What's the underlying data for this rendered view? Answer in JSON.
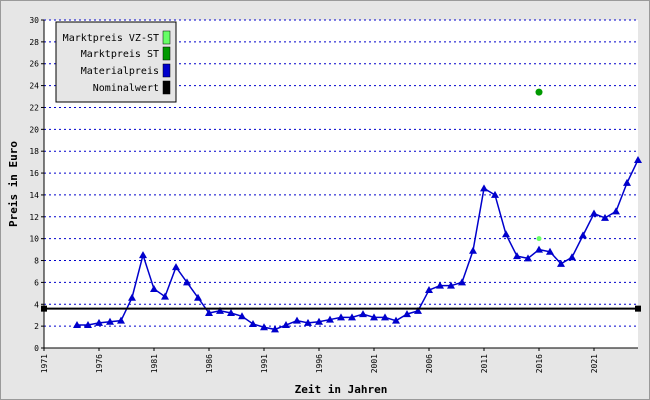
{
  "chart_data": {
    "type": "line",
    "title": "",
    "xlabel": "Zeit in Jahren",
    "ylabel": "Preis in Euro",
    "xlim": [
      1971,
      2025
    ],
    "ylim": [
      0,
      30
    ],
    "x_ticks": [
      "1971",
      "1976",
      "1981",
      "1986",
      "1991",
      "1996",
      "2001",
      "2006",
      "2011",
      "2016",
      "2021"
    ],
    "y_ticks": [
      0,
      2,
      4,
      6,
      8,
      10,
      12,
      14,
      16,
      18,
      20,
      22,
      24,
      26,
      28,
      30
    ],
    "grid": "horizontal dotted",
    "legend_position": "top-left",
    "series": [
      {
        "name": "Marktpreis VZ-ST",
        "color": "#66ff66",
        "kind": "point",
        "points": [
          [
            2016,
            10.0
          ]
        ]
      },
      {
        "name": "Marktpreis ST",
        "color": "#009900",
        "kind": "point",
        "points": [
          [
            2016,
            23.4
          ]
        ]
      },
      {
        "name": "Materialpreis",
        "color": "#0000cc",
        "kind": "line",
        "points": [
          [
            1974,
            2.1
          ],
          [
            1975,
            2.1
          ],
          [
            1976,
            2.3
          ],
          [
            1977,
            2.4
          ],
          [
            1978,
            2.5
          ],
          [
            1979,
            4.6
          ],
          [
            1980,
            8.5
          ],
          [
            1981,
            5.4
          ],
          [
            1982,
            4.7
          ],
          [
            1983,
            7.4
          ],
          [
            1984,
            6.0
          ],
          [
            1985,
            4.6
          ],
          [
            1986,
            3.2
          ],
          [
            1987,
            3.4
          ],
          [
            1988,
            3.2
          ],
          [
            1989,
            2.9
          ],
          [
            1990,
            2.2
          ],
          [
            1991,
            1.9
          ],
          [
            1992,
            1.7
          ],
          [
            1993,
            2.1
          ],
          [
            1994,
            2.5
          ],
          [
            1995,
            2.3
          ],
          [
            1996,
            2.4
          ],
          [
            1997,
            2.6
          ],
          [
            1998,
            2.8
          ],
          [
            1999,
            2.8
          ],
          [
            2000,
            3.1
          ],
          [
            2001,
            2.8
          ],
          [
            2002,
            2.8
          ],
          [
            2003,
            2.5
          ],
          [
            2004,
            3.1
          ],
          [
            2005,
            3.4
          ],
          [
            2006,
            5.3
          ],
          [
            2007,
            5.7
          ],
          [
            2008,
            5.7
          ],
          [
            2009,
            6.0
          ],
          [
            2010,
            8.9
          ],
          [
            2011,
            14.6
          ],
          [
            2012,
            14.0
          ],
          [
            2013,
            10.4
          ],
          [
            2014,
            8.4
          ],
          [
            2015,
            8.2
          ],
          [
            2016,
            9.0
          ],
          [
            2017,
            8.8
          ],
          [
            2018,
            7.7
          ],
          [
            2019,
            8.3
          ],
          [
            2020,
            10.3
          ],
          [
            2021,
            12.3
          ],
          [
            2022,
            11.9
          ],
          [
            2023,
            12.5
          ],
          [
            2024,
            15.1
          ],
          [
            2025,
            17.2
          ]
        ]
      },
      {
        "name": "Nominalwert",
        "color": "#000000",
        "kind": "line",
        "points": [
          [
            1971,
            3.6
          ],
          [
            2025,
            3.6
          ]
        ]
      }
    ]
  }
}
